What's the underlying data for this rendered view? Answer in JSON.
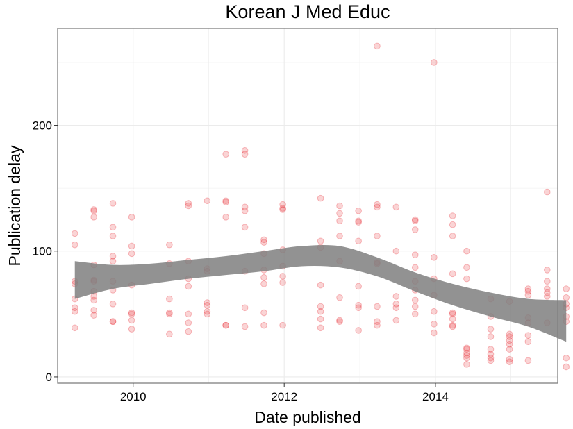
{
  "chart_data": {
    "type": "scatter",
    "title": "Korean J Med Educ",
    "xlabel": "Date published",
    "ylabel": "Publication delay",
    "xlim": [
      "2009-01-01",
      "2015-08-15"
    ],
    "ylim": [
      -5,
      277
    ],
    "x_ticks": [
      {
        "date": "2010-01-01",
        "label": "2010"
      },
      {
        "date": "2012-01-01",
        "label": "2012"
      },
      {
        "date": "2014-01-01",
        "label": "2014"
      }
    ],
    "y_ticks": [
      {
        "value": 0,
        "label": "0"
      },
      {
        "value": 100,
        "label": "100"
      },
      {
        "value": 200,
        "label": "200"
      }
    ],
    "grid": true,
    "legend": "none",
    "colors": {
      "points": "#e8262e",
      "band": "#7f7f7f",
      "border": "#7f7f7f",
      "grid": "#ebebeb"
    },
    "points": [
      {
        "x": "2009-03-25",
        "y": 114
      },
      {
        "x": "2009-03-25",
        "y": 105
      },
      {
        "x": "2009-03-25",
        "y": 76
      },
      {
        "x": "2009-03-25",
        "y": 74
      },
      {
        "x": "2009-03-25",
        "y": 62
      },
      {
        "x": "2009-03-25",
        "y": 55
      },
      {
        "x": "2009-03-25",
        "y": 52
      },
      {
        "x": "2009-03-25",
        "y": 39
      },
      {
        "x": "2009-06-25",
        "y": 133
      },
      {
        "x": "2009-06-25",
        "y": 132
      },
      {
        "x": "2009-06-25",
        "y": 127
      },
      {
        "x": "2009-06-25",
        "y": 89
      },
      {
        "x": "2009-06-25",
        "y": 77
      },
      {
        "x": "2009-06-25",
        "y": 76
      },
      {
        "x": "2009-06-25",
        "y": 68
      },
      {
        "x": "2009-06-25",
        "y": 64
      },
      {
        "x": "2009-06-25",
        "y": 61
      },
      {
        "x": "2009-06-25",
        "y": 53
      },
      {
        "x": "2009-06-25",
        "y": 49
      },
      {
        "x": "2009-09-25",
        "y": 138
      },
      {
        "x": "2009-09-25",
        "y": 119
      },
      {
        "x": "2009-09-25",
        "y": 112
      },
      {
        "x": "2009-09-25",
        "y": 96
      },
      {
        "x": "2009-09-25",
        "y": 92
      },
      {
        "x": "2009-09-25",
        "y": 76
      },
      {
        "x": "2009-09-25",
        "y": 69
      },
      {
        "x": "2009-09-25",
        "y": 58
      },
      {
        "x": "2009-09-25",
        "y": 44
      },
      {
        "x": "2009-09-25",
        "y": 44
      },
      {
        "x": "2009-12-25",
        "y": 127
      },
      {
        "x": "2009-12-25",
        "y": 104
      },
      {
        "x": "2009-12-25",
        "y": 98
      },
      {
        "x": "2009-12-25",
        "y": 73
      },
      {
        "x": "2009-12-25",
        "y": 51
      },
      {
        "x": "2009-12-25",
        "y": 50
      },
      {
        "x": "2009-12-25",
        "y": 45
      },
      {
        "x": "2009-12-25",
        "y": 38
      },
      {
        "x": "2010-06-25",
        "y": 105
      },
      {
        "x": "2010-06-25",
        "y": 90
      },
      {
        "x": "2010-06-25",
        "y": 62
      },
      {
        "x": "2010-06-25",
        "y": 51
      },
      {
        "x": "2010-06-25",
        "y": 50
      },
      {
        "x": "2010-06-25",
        "y": 34
      },
      {
        "x": "2010-09-25",
        "y": 138
      },
      {
        "x": "2010-09-25",
        "y": 136
      },
      {
        "x": "2010-09-25",
        "y": 92
      },
      {
        "x": "2010-09-25",
        "y": 78
      },
      {
        "x": "2010-09-25",
        "y": 72
      },
      {
        "x": "2010-09-25",
        "y": 50
      },
      {
        "x": "2010-09-25",
        "y": 43
      },
      {
        "x": "2010-09-25",
        "y": 36
      },
      {
        "x": "2010-12-25",
        "y": 140
      },
      {
        "x": "2010-12-25",
        "y": 86
      },
      {
        "x": "2010-12-25",
        "y": 84
      },
      {
        "x": "2010-12-25",
        "y": 59
      },
      {
        "x": "2010-12-25",
        "y": 57
      },
      {
        "x": "2010-12-25",
        "y": 52
      },
      {
        "x": "2010-12-25",
        "y": 50
      },
      {
        "x": "2011-03-25",
        "y": 177
      },
      {
        "x": "2011-03-25",
        "y": 140
      },
      {
        "x": "2011-03-25",
        "y": 139
      },
      {
        "x": "2011-03-25",
        "y": 127
      },
      {
        "x": "2011-03-25",
        "y": 41
      },
      {
        "x": "2011-03-25",
        "y": 41
      },
      {
        "x": "2011-06-25",
        "y": 180
      },
      {
        "x": "2011-06-25",
        "y": 177
      },
      {
        "x": "2011-06-25",
        "y": 135
      },
      {
        "x": "2011-06-25",
        "y": 132
      },
      {
        "x": "2011-06-25",
        "y": 119
      },
      {
        "x": "2011-06-25",
        "y": 84
      },
      {
        "x": "2011-06-25",
        "y": 55
      },
      {
        "x": "2011-06-25",
        "y": 40
      },
      {
        "x": "2011-09-25",
        "y": 109
      },
      {
        "x": "2011-09-25",
        "y": 107
      },
      {
        "x": "2011-09-25",
        "y": 98
      },
      {
        "x": "2011-09-25",
        "y": 85
      },
      {
        "x": "2011-09-25",
        "y": 79
      },
      {
        "x": "2011-09-25",
        "y": 74
      },
      {
        "x": "2011-09-25",
        "y": 51
      },
      {
        "x": "2011-09-25",
        "y": 41
      },
      {
        "x": "2011-12-25",
        "y": 137
      },
      {
        "x": "2011-12-25",
        "y": 134
      },
      {
        "x": "2011-12-25",
        "y": 133
      },
      {
        "x": "2011-12-25",
        "y": 101
      },
      {
        "x": "2011-12-25",
        "y": 88
      },
      {
        "x": "2011-12-25",
        "y": 80
      },
      {
        "x": "2011-12-25",
        "y": 75
      },
      {
        "x": "2011-12-25",
        "y": 41
      },
      {
        "x": "2012-06-25",
        "y": 142
      },
      {
        "x": "2012-06-25",
        "y": 108
      },
      {
        "x": "2012-06-25",
        "y": 103
      },
      {
        "x": "2012-06-25",
        "y": 73
      },
      {
        "x": "2012-06-25",
        "y": 56
      },
      {
        "x": "2012-06-25",
        "y": 52
      },
      {
        "x": "2012-06-25",
        "y": 46
      },
      {
        "x": "2012-06-25",
        "y": 39
      },
      {
        "x": "2012-09-25",
        "y": 136
      },
      {
        "x": "2012-09-25",
        "y": 130
      },
      {
        "x": "2012-09-25",
        "y": 124
      },
      {
        "x": "2012-09-25",
        "y": 112
      },
      {
        "x": "2012-09-25",
        "y": 92
      },
      {
        "x": "2012-09-25",
        "y": 63
      },
      {
        "x": "2012-09-25",
        "y": 45
      },
      {
        "x": "2012-09-25",
        "y": 44
      },
      {
        "x": "2012-12-25",
        "y": 132
      },
      {
        "x": "2012-12-25",
        "y": 124
      },
      {
        "x": "2012-12-25",
        "y": 123
      },
      {
        "x": "2012-12-25",
        "y": 108
      },
      {
        "x": "2012-12-25",
        "y": 72
      },
      {
        "x": "2012-12-25",
        "y": 57
      },
      {
        "x": "2012-12-25",
        "y": 55
      },
      {
        "x": "2012-12-25",
        "y": 37
      },
      {
        "x": "2013-03-25",
        "y": 263
      },
      {
        "x": "2013-03-25",
        "y": 137
      },
      {
        "x": "2013-03-25",
        "y": 135
      },
      {
        "x": "2013-03-25",
        "y": 112
      },
      {
        "x": "2013-03-25",
        "y": 91
      },
      {
        "x": "2013-03-25",
        "y": 90
      },
      {
        "x": "2013-03-25",
        "y": 56
      },
      {
        "x": "2013-03-25",
        "y": 44
      },
      {
        "x": "2013-03-25",
        "y": 41
      },
      {
        "x": "2013-06-25",
        "y": 135
      },
      {
        "x": "2013-06-25",
        "y": 100
      },
      {
        "x": "2013-06-25",
        "y": 64
      },
      {
        "x": "2013-06-25",
        "y": 58
      },
      {
        "x": "2013-06-25",
        "y": 55
      },
      {
        "x": "2013-06-25",
        "y": 45
      },
      {
        "x": "2013-09-25",
        "y": 125
      },
      {
        "x": "2013-09-25",
        "y": 124
      },
      {
        "x": "2013-09-25",
        "y": 117
      },
      {
        "x": "2013-09-25",
        "y": 97
      },
      {
        "x": "2013-09-25",
        "y": 87
      },
      {
        "x": "2013-09-25",
        "y": 76
      },
      {
        "x": "2013-09-25",
        "y": 69
      },
      {
        "x": "2013-09-25",
        "y": 61
      },
      {
        "x": "2013-09-25",
        "y": 56
      },
      {
        "x": "2013-09-25",
        "y": 50
      },
      {
        "x": "2013-12-25",
        "y": 250
      },
      {
        "x": "2013-12-25",
        "y": 95
      },
      {
        "x": "2013-12-25",
        "y": 78
      },
      {
        "x": "2013-12-25",
        "y": 65
      },
      {
        "x": "2013-12-25",
        "y": 52
      },
      {
        "x": "2013-12-25",
        "y": 42
      },
      {
        "x": "2013-12-25",
        "y": 35
      },
      {
        "x": "2014-03-25",
        "y": 128
      },
      {
        "x": "2014-03-25",
        "y": 121
      },
      {
        "x": "2014-03-25",
        "y": 112
      },
      {
        "x": "2014-03-25",
        "y": 82
      },
      {
        "x": "2014-03-25",
        "y": 51
      },
      {
        "x": "2014-03-25",
        "y": 50
      },
      {
        "x": "2014-03-25",
        "y": 46
      },
      {
        "x": "2014-03-25",
        "y": 41
      },
      {
        "x": "2014-03-25",
        "y": 40
      },
      {
        "x": "2014-06-01",
        "y": 100
      },
      {
        "x": "2014-06-01",
        "y": 87
      },
      {
        "x": "2014-06-01",
        "y": 78
      },
      {
        "x": "2014-06-01",
        "y": 23
      },
      {
        "x": "2014-06-01",
        "y": 22
      },
      {
        "x": "2014-06-01",
        "y": 19
      },
      {
        "x": "2014-06-01",
        "y": 17
      },
      {
        "x": "2014-06-01",
        "y": 15
      },
      {
        "x": "2014-06-01",
        "y": 10
      },
      {
        "x": "2014-09-25",
        "y": 62
      },
      {
        "x": "2014-09-25",
        "y": 48
      },
      {
        "x": "2014-09-25",
        "y": 38
      },
      {
        "x": "2014-09-25",
        "y": 32
      },
      {
        "x": "2014-09-25",
        "y": 22
      },
      {
        "x": "2014-09-25",
        "y": 18
      },
      {
        "x": "2014-09-25",
        "y": 15
      },
      {
        "x": "2014-09-25",
        "y": 13
      },
      {
        "x": "2014-12-25",
        "y": 60
      },
      {
        "x": "2014-12-25",
        "y": 34
      },
      {
        "x": "2014-12-25",
        "y": 32
      },
      {
        "x": "2014-12-25",
        "y": 29
      },
      {
        "x": "2014-12-25",
        "y": 26
      },
      {
        "x": "2014-12-25",
        "y": 22
      },
      {
        "x": "2014-12-25",
        "y": 14
      },
      {
        "x": "2014-12-25",
        "y": 12
      },
      {
        "x": "2015-03-25",
        "y": 70
      },
      {
        "x": "2015-03-25",
        "y": 68
      },
      {
        "x": "2015-03-25",
        "y": 65
      },
      {
        "x": "2015-03-25",
        "y": 47
      },
      {
        "x": "2015-03-25",
        "y": 43
      },
      {
        "x": "2015-03-25",
        "y": 33
      },
      {
        "x": "2015-03-25",
        "y": 28
      },
      {
        "x": "2015-03-25",
        "y": 13
      },
      {
        "x": "2015-06-25",
        "y": 147
      },
      {
        "x": "2015-06-25",
        "y": 85
      },
      {
        "x": "2015-06-25",
        "y": 76
      },
      {
        "x": "2015-06-25",
        "y": 70
      },
      {
        "x": "2015-06-25",
        "y": 67
      },
      {
        "x": "2015-06-25",
        "y": 64
      },
      {
        "x": "2015-06-25",
        "y": 43
      },
      {
        "x": "2015-09-25",
        "y": 70
      },
      {
        "x": "2015-09-25",
        "y": 63
      },
      {
        "x": "2015-09-25",
        "y": 58
      },
      {
        "x": "2015-09-25",
        "y": 55
      },
      {
        "x": "2015-09-25",
        "y": 48
      },
      {
        "x": "2015-09-25",
        "y": 44
      },
      {
        "x": "2015-09-25",
        "y": 15
      },
      {
        "x": "2015-09-25",
        "y": 8
      }
    ],
    "smooth_band": {
      "x": [
        "2009-03-25",
        "2009-09-25",
        "2010-03-25",
        "2010-09-25",
        "2011-03-25",
        "2011-09-25",
        "2012-03-25",
        "2012-09-25",
        "2013-03-25",
        "2013-09-25",
        "2014-03-25",
        "2014-09-25",
        "2015-03-25",
        "2015-09-25"
      ],
      "upper": [
        92,
        89,
        90,
        93,
        96,
        100,
        104,
        104,
        95,
        83,
        74,
        67,
        62,
        61
      ],
      "lower": [
        62,
        70,
        74,
        78,
        81,
        84,
        88,
        87,
        80,
        68,
        57,
        48,
        40,
        28
      ]
    }
  }
}
